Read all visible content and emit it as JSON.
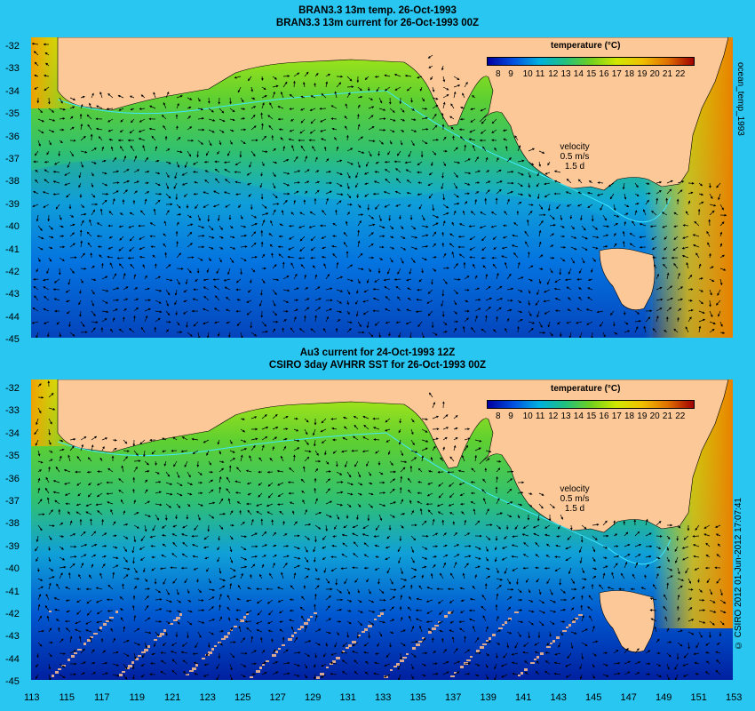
{
  "top_panel": {
    "title_line1": "BRAN3.3 13m temp. 26-Oct-1993",
    "title_line2": "BRAN3.3 13m current for 26-Oct-1993 00Z",
    "side_label": "ocean_temp_1993"
  },
  "bottom_panel": {
    "title_line1": "Au3 current for 24-Oct-1993 12Z",
    "title_line2": "CSIRO 3day AVHRR SST for 26-Oct-1993 00Z",
    "side_label": "© CSIRO 2012  01-Jun-2012 17:07:41"
  },
  "legend": {
    "title": "temperature (°C)",
    "ticks": [
      "8",
      "9",
      "10",
      "11",
      "12",
      "13",
      "14",
      "15",
      "16",
      "17",
      "18",
      "19",
      "20",
      "21",
      "22"
    ]
  },
  "velocity_key": {
    "line1": "velocity",
    "line2": "0.5 m/s",
    "line3": "1.5 d"
  },
  "axes": {
    "y_ticks": [
      "-32",
      "-33",
      "-34",
      "-35",
      "-36",
      "-37",
      "-38",
      "-39",
      "-40",
      "-41",
      "-42",
      "-43",
      "-44",
      "-45"
    ],
    "x_ticks": [
      "113",
      "115",
      "117",
      "119",
      "121",
      "123",
      "125",
      "127",
      "129",
      "131",
      "133",
      "135",
      "137",
      "139",
      "141",
      "143",
      "145",
      "147",
      "149",
      "151",
      "153"
    ]
  },
  "colors": {
    "background": "#29c6f2",
    "land": "#fcc898",
    "scale": [
      "#0000a0",
      "#0038d0",
      "#0070e0",
      "#00a0e8",
      "#00c0d0",
      "#20c080",
      "#40c040",
      "#70d020",
      "#a0e020",
      "#d0e800",
      "#f0e000",
      "#f0b000",
      "#e88000",
      "#d04000",
      "#a00000"
    ]
  }
}
